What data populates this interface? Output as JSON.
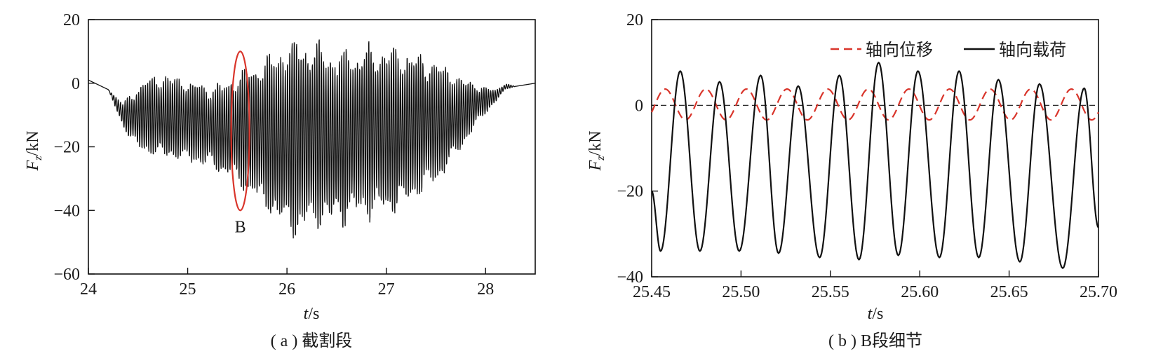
{
  "chart_data": [
    {
      "type": "line",
      "caption": "( a ) 截割段",
      "xlabel_var": "t",
      "xlabel_unit": "/s",
      "ylabel_var": "F",
      "ylabel_sub": "z",
      "ylabel_unit": "/kN",
      "xlim": [
        24,
        28.5
      ],
      "ylim": [
        -60,
        20
      ],
      "xticks": [
        24,
        25,
        26,
        27,
        28
      ],
      "yticks": [
        20,
        0,
        -20,
        -40,
        -60
      ],
      "annotation": {
        "text": "B",
        "x_center": 25.53,
        "y_top": 10,
        "y_bottom": -40,
        "color": "#d9352b"
      },
      "series": [
        {
          "style": "dense oscillation",
          "color": "#111111",
          "frequency_hz": 44,
          "upper_envelope": [
            [
              24.0,
              1
            ],
            [
              24.2,
              -2
            ],
            [
              24.35,
              -6
            ],
            [
              24.5,
              0
            ],
            [
              24.7,
              4
            ],
            [
              24.9,
              3
            ],
            [
              25.0,
              2
            ],
            [
              25.2,
              0
            ],
            [
              25.4,
              2
            ],
            [
              25.5,
              4
            ],
            [
              25.6,
              6
            ],
            [
              25.8,
              10
            ],
            [
              26.0,
              14
            ],
            [
              26.1,
              16
            ],
            [
              26.3,
              14
            ],
            [
              26.5,
              12
            ],
            [
              26.8,
              13
            ],
            [
              27.0,
              14
            ],
            [
              27.2,
              12
            ],
            [
              27.5,
              8
            ],
            [
              27.7,
              4
            ],
            [
              27.9,
              0
            ],
            [
              28.1,
              -2
            ],
            [
              28.2,
              0
            ],
            [
              28.3,
              -1
            ],
            [
              28.5,
              0
            ]
          ],
          "lower_envelope": [
            [
              24.0,
              1
            ],
            [
              24.2,
              -2
            ],
            [
              24.35,
              -14
            ],
            [
              24.5,
              -22
            ],
            [
              24.7,
              -24
            ],
            [
              24.9,
              -25
            ],
            [
              25.0,
              -26
            ],
            [
              25.2,
              -27
            ],
            [
              25.4,
              -30
            ],
            [
              25.6,
              -36
            ],
            [
              25.8,
              -42
            ],
            [
              26.0,
              -48
            ],
            [
              26.1,
              -50
            ],
            [
              26.3,
              -47
            ],
            [
              26.5,
              -46
            ],
            [
              26.8,
              -44
            ],
            [
              27.0,
              -43
            ],
            [
              27.2,
              -40
            ],
            [
              27.5,
              -33
            ],
            [
              27.7,
              -24
            ],
            [
              27.9,
              -14
            ],
            [
              28.1,
              -6
            ],
            [
              28.2,
              -2
            ],
            [
              28.3,
              -1
            ],
            [
              28.5,
              0
            ]
          ]
        }
      ]
    },
    {
      "type": "line",
      "caption": "( b ) B段细节",
      "xlabel_var": "t",
      "xlabel_unit": "/s",
      "ylabel_var": "F",
      "ylabel_sub": "z",
      "ylabel_unit": "/kN",
      "xlim": [
        25.45,
        25.7
      ],
      "ylim": [
        -40,
        20
      ],
      "xticks": [
        "25.45",
        "25.50",
        "25.55",
        "25.60",
        "25.65",
        "25.70"
      ],
      "yticks": [
        20,
        0,
        -20,
        -40
      ],
      "reference_line_y": 0,
      "legend": [
        {
          "name": "轴向位移",
          "color": "#d9352b",
          "dash": true
        },
        {
          "name": "轴向载荷",
          "color": "#111111",
          "dash": false
        }
      ],
      "series": [
        {
          "name": "轴向位移",
          "color": "#d9352b",
          "dash": true,
          "frequency_hz": 44,
          "amplitude": 3.6,
          "offset": 0.2,
          "phase_deg": -30
        },
        {
          "name": "轴向载荷",
          "color": "#111111",
          "dash": false,
          "peaks": [
            [
              25.466,
              8
            ],
            [
              25.488,
              5.5
            ],
            [
              25.511,
              7
            ],
            [
              25.532,
              4.5
            ],
            [
              25.555,
              7
            ],
            [
              25.577,
              10
            ],
            [
              25.599,
              8
            ],
            [
              25.622,
              8
            ],
            [
              25.644,
              6
            ],
            [
              25.667,
              5
            ],
            [
              25.692,
              4
            ]
          ],
          "troughs": [
            [
              25.455,
              -34
            ],
            [
              25.477,
              -34
            ],
            [
              25.499,
              -34
            ],
            [
              25.521,
              -34.5
            ],
            [
              25.544,
              -35.5
            ],
            [
              25.566,
              -36
            ],
            [
              25.588,
              -35
            ],
            [
              25.611,
              -35.5
            ],
            [
              25.633,
              -35.5
            ],
            [
              25.656,
              -36.5
            ],
            [
              25.68,
              -38
            ]
          ],
          "start": [
            25.45,
            -20
          ],
          "end": [
            25.7,
            -28.5
          ]
        }
      ]
    }
  ]
}
